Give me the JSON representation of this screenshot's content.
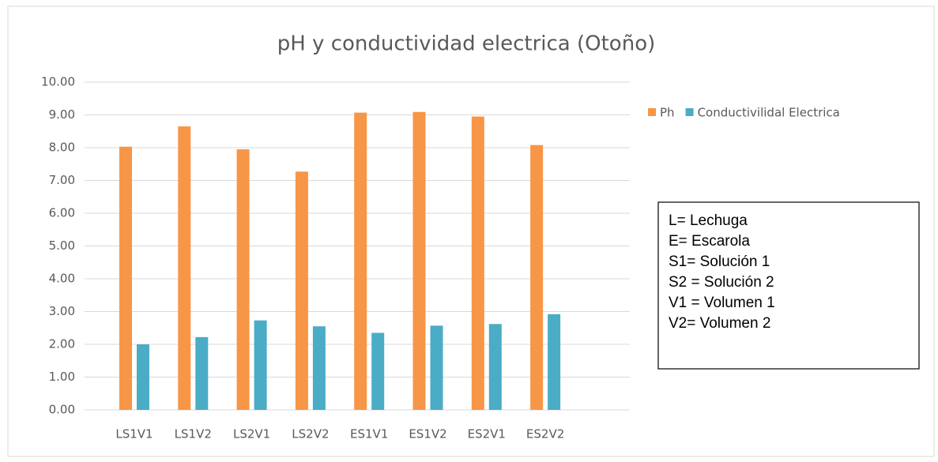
{
  "chart_data": {
    "type": "bar",
    "title": "pH y conductividad electrica (Otoño)",
    "categories": [
      "LS1V1",
      "LS1V2",
      "LS2V1",
      "LS2V2",
      "ES1V1",
      "ES1V2",
      "ES2V1",
      "ES2V2"
    ],
    "series": [
      {
        "name": "Ph",
        "color": "#f79646",
        "values": [
          8.03,
          8.65,
          7.95,
          7.27,
          9.07,
          9.09,
          8.95,
          8.08
        ]
      },
      {
        "name": "Conductivilidal Electrica",
        "color": "#4bacc6",
        "values": [
          2.0,
          2.22,
          2.73,
          2.55,
          2.35,
          2.57,
          2.62,
          2.92
        ]
      }
    ],
    "ylim": [
      0,
      10
    ],
    "yticks": [
      {
        "value": 0,
        "label": "0.00"
      },
      {
        "value": 1,
        "label": "1.00"
      },
      {
        "value": 2,
        "label": "2.00"
      },
      {
        "value": 3,
        "label": "3.00"
      },
      {
        "value": 4,
        "label": "4.00"
      },
      {
        "value": 5,
        "label": "5.00"
      },
      {
        "value": 6,
        "label": "6.00"
      },
      {
        "value": 7,
        "label": "7.00"
      },
      {
        "value": 8,
        "label": "8.00"
      },
      {
        "value": 9,
        "label": "9.00"
      },
      {
        "value": 10,
        "label": "10.00"
      }
    ],
    "grid": true,
    "legend": "right",
    "annotations": [
      "L= Lechuga",
      "E= Escarola",
      "S1= Solución 1",
      "S2 = Solución 2",
      "V1 = Volumen 1",
      "V2= Volumen 2"
    ]
  }
}
